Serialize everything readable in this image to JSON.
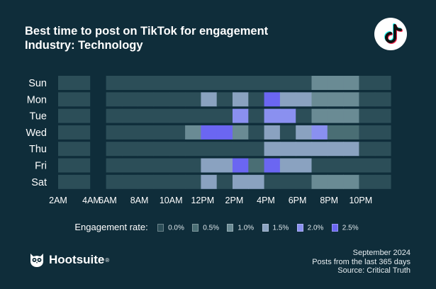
{
  "header": {
    "title": "Best time to post on TikTok for engagement",
    "subtitle": "Industry: Technology"
  },
  "chart_data": {
    "type": "heatmap",
    "title": "Best time to post on TikTok for engagement",
    "subtitle": "Industry: Technology",
    "rows": [
      "Sun",
      "Mon",
      "Tue",
      "Wed",
      "Thu",
      "Fri",
      "Sat"
    ],
    "columns": [
      "2AM",
      "3AM",
      "4AM",
      "5AM",
      "6AM",
      "7AM",
      "8AM",
      "9AM",
      "10AM",
      "11AM",
      "12PM",
      "1PM",
      "2PM",
      "3PM",
      "4PM",
      "5PM",
      "6PM",
      "7PM",
      "8PM",
      "9PM"
    ],
    "x_tick_labels": [
      "2AM",
      "4AM",
      "6AM",
      "8AM",
      "10AM",
      "12PM",
      "2PM",
      "4PM",
      "6PM",
      "8PM",
      "10PM"
    ],
    "gap_after_column": "3AM",
    "legend_title": "Engagement rate:",
    "legend_levels": [
      "0.0%",
      "0.5%",
      "1.0%",
      "1.5%",
      "2.0%",
      "2.5%"
    ],
    "level_colors": [
      "#2c4e58",
      "#4a6e74",
      "#6a8b94",
      "#8aa2c0",
      "#8a90f0",
      "#6b66f2"
    ],
    "values": [
      [
        0,
        0,
        0,
        0,
        0,
        0,
        0,
        0,
        0,
        0,
        0,
        0,
        0,
        0,
        0,
        2,
        2,
        2,
        0,
        0
      ],
      [
        0,
        0,
        0,
        0,
        0,
        0,
        0,
        0,
        3,
        0,
        3,
        0,
        5,
        3,
        3,
        2,
        2,
        2,
        0,
        0
      ],
      [
        0,
        0,
        0,
        0,
        0,
        0,
        0,
        0,
        0,
        0,
        4,
        0,
        4,
        4,
        0,
        2,
        2,
        2,
        0,
        0
      ],
      [
        0,
        0,
        0,
        0,
        0,
        0,
        0,
        2,
        5,
        5,
        2,
        0,
        3,
        0,
        3,
        4,
        1,
        1,
        0,
        0
      ],
      [
        0,
        0,
        0,
        0,
        0,
        0,
        0,
        0,
        0,
        0,
        0,
        0,
        3,
        3,
        3,
        3,
        3,
        3,
        0,
        0
      ],
      [
        0,
        0,
        0,
        0,
        0,
        0,
        0,
        0,
        3,
        3,
        5,
        1,
        5,
        3,
        3,
        0,
        0,
        0,
        0,
        0
      ],
      [
        0,
        0,
        0,
        0,
        0,
        0,
        0,
        0,
        3,
        0,
        3,
        3,
        0,
        0,
        0,
        2,
        2,
        2,
        0,
        0
      ]
    ]
  },
  "legend": {
    "title": "Engagement rate:",
    "items": [
      {
        "label": "0.0%",
        "color": "#2c4e58"
      },
      {
        "label": "0.5%",
        "color": "#4a6e74"
      },
      {
        "label": "1.0%",
        "color": "#6a8b94"
      },
      {
        "label": "1.5%",
        "color": "#8aa2c0"
      },
      {
        "label": "2.0%",
        "color": "#8a90f0"
      },
      {
        "label": "2.5%",
        "color": "#6b66f2"
      }
    ]
  },
  "brand": {
    "name": "Hootsuite",
    "mark": "®"
  },
  "footer": {
    "date": "September 2024",
    "period": "Posts from the last 365 days",
    "source": "Source: Critical Truth"
  },
  "colors": {
    "background": "#0f2d3a",
    "text": "#ffffff"
  }
}
